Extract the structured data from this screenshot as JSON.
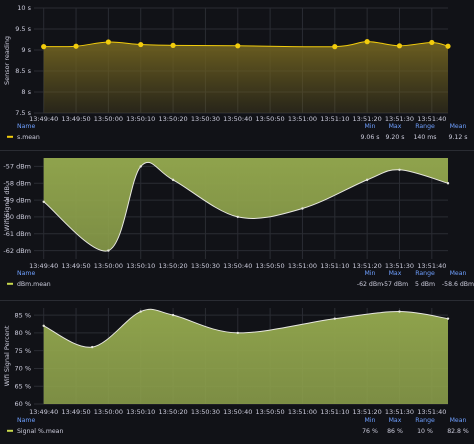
{
  "colors": {
    "background": "#111217",
    "grid": "#2a2c33",
    "legend_header": "#6e9fff",
    "yellow_series": "#f2cc0c",
    "yellow_fill": "#6b5e20",
    "green_fill": "#8fa34c",
    "green_line": "#e8e8e0"
  },
  "chart_data": [
    {
      "type": "area",
      "ylabel": "Sensor reading",
      "ylim": [
        7.5,
        10
      ],
      "yticks": [
        "10 s",
        "9.5 s",
        "9 s",
        "8.5 s",
        "8 s",
        "7.5 s"
      ],
      "xticks": [
        "13:49:40",
        "13:49:50",
        "13:50:00",
        "13:50:10",
        "13:50:20",
        "13:50:30",
        "13:50:40",
        "13:50:50",
        "13:51:00",
        "13:51:10",
        "13:51:20",
        "13:51:30",
        "13:51:40"
      ],
      "x": [
        "13:49:40",
        "13:49:50",
        "13:50:00",
        "13:50:10",
        "13:50:20",
        "13:50:40",
        "13:51:10",
        "13:51:20",
        "13:51:30",
        "13:51:40",
        "13:51:45"
      ],
      "series": [
        {
          "name": "s.mean",
          "values": [
            9.08,
            9.09,
            9.19,
            9.13,
            9.11,
            9.1,
            9.08,
            9.2,
            9.1,
            9.18,
            9.09
          ]
        }
      ],
      "legend": {
        "header_name": "Name",
        "headers": [
          "Min",
          "Max",
          "Range",
          "Mean"
        ],
        "values": [
          "9.06 s",
          "9.20 s",
          "140 ms",
          "9.12 s"
        ]
      },
      "grid": true,
      "legend_position": "bottom"
    },
    {
      "type": "area",
      "ylabel": "Wifi Signal dB",
      "ylim": [
        -62.5,
        -56.5
      ],
      "yticks": [
        "-57 dBm",
        "-58 dBm",
        "-59 dBm",
        "-60 dBm",
        "-61 dBm",
        "-62 dBm"
      ],
      "xticks": [
        "13:49:40",
        "13:49:50",
        "13:50:00",
        "13:50:10",
        "13:50:20",
        "13:50:30",
        "13:50:40",
        "13:50:50",
        "13:51:00",
        "13:51:10",
        "13:51:20",
        "13:51:30",
        "13:51:40"
      ],
      "x": [
        "13:49:40",
        "13:50:00",
        "13:50:10",
        "13:50:20",
        "13:50:40",
        "13:51:00",
        "13:51:20",
        "13:51:30",
        "13:51:45"
      ],
      "series": [
        {
          "name": "dBm.mean",
          "values": [
            -59.1,
            -62,
            -57,
            -57.8,
            -60,
            -59.5,
            -57.8,
            -57.2,
            -58
          ]
        }
      ],
      "legend": {
        "header_name": "Name",
        "headers": [
          "Min",
          "Max",
          "Range",
          "Mean"
        ],
        "values": [
          "-62 dBm",
          "-57 dBm",
          "5 dBm",
          "-58.6 dBm"
        ]
      },
      "grid": true,
      "legend_position": "bottom"
    },
    {
      "type": "area",
      "ylabel": "Wifi Signal Percent",
      "ylim": [
        60,
        87
      ],
      "yticks": [
        "85 %",
        "80 %",
        "75 %",
        "70 %",
        "65 %",
        "60 %"
      ],
      "xticks": [
        "13:49:40",
        "13:49:50",
        "13:50:00",
        "13:50:10",
        "13:50:20",
        "13:50:30",
        "13:50:40",
        "13:50:50",
        "13:51:00",
        "13:51:10",
        "13:51:20",
        "13:51:30",
        "13:51:40"
      ],
      "x": [
        "13:49:40",
        "13:49:55",
        "13:50:10",
        "13:50:20",
        "13:50:40",
        "13:51:10",
        "13:51:30",
        "13:51:45"
      ],
      "series": [
        {
          "name": "Signal %.mean",
          "values": [
            82,
            76,
            86,
            85,
            80,
            84,
            86,
            84
          ]
        }
      ],
      "legend": {
        "header_name": "Name",
        "headers": [
          "Min",
          "Max",
          "Range",
          "Mean"
        ],
        "values": [
          "76 %",
          "86 %",
          "10 %",
          "82.8 %"
        ]
      },
      "grid": true,
      "legend_position": "bottom"
    }
  ]
}
